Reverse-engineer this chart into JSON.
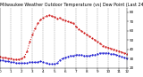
{
  "title": "Milwaukee Weather Outdoor Temperature (vs) Dew Point (Last 24 Hours)",
  "background_color": "#ffffff",
  "plot_bg_color": "#ffffff",
  "grid_color": "#888888",
  "temp_color": "#cc0000",
  "dew_color": "#0000cc",
  "x_values": [
    0,
    1,
    2,
    3,
    4,
    5,
    6,
    7,
    8,
    9,
    10,
    11,
    12,
    13,
    14,
    15,
    16,
    17,
    18,
    19,
    20,
    21,
    22,
    23,
    24,
    25,
    26,
    27,
    28,
    29,
    30,
    31,
    32,
    33,
    34,
    35,
    36,
    37,
    38,
    39,
    40,
    41,
    42,
    43,
    44,
    45,
    46,
    47
  ],
  "temp_values": [
    32,
    31,
    31,
    30,
    30,
    29,
    29,
    29,
    30,
    32,
    38,
    48,
    56,
    63,
    68,
    72,
    74,
    76,
    77,
    76,
    75,
    73,
    74,
    72,
    71,
    70,
    69,
    68,
    65,
    62,
    60,
    58,
    56,
    54,
    52,
    50,
    48,
    46,
    44,
    43,
    42,
    41,
    40,
    39,
    38,
    37,
    36,
    35
  ],
  "dew_values": [
    28,
    28,
    27,
    27,
    26,
    26,
    25,
    25,
    25,
    25,
    25,
    26,
    26,
    26,
    26,
    27,
    26,
    25,
    24,
    24,
    24,
    25,
    28,
    30,
    31,
    32,
    33,
    33,
    34,
    34,
    34,
    33,
    33,
    33,
    34,
    34,
    35,
    36,
    36,
    36,
    36,
    35,
    35,
    34,
    33,
    32,
    31,
    30
  ],
  "ylim": [
    20,
    85
  ],
  "xlim": [
    0,
    47
  ],
  "yticks": [
    20,
    30,
    40,
    50,
    60,
    70,
    80
  ],
  "ytick_labels": [
    "20",
    "30",
    "40",
    "50",
    "60",
    "70",
    "80"
  ],
  "xtick_positions": [
    0,
    4,
    8,
    12,
    16,
    20,
    24,
    28,
    32,
    36,
    40,
    44,
    47
  ],
  "vline_positions": [
    4,
    8,
    12,
    16,
    20,
    24,
    28,
    32,
    36,
    40,
    44
  ],
  "figsize": [
    1.6,
    0.87
  ],
  "dpi": 100,
  "title_fontsize": 3.5,
  "tick_fontsize": 3.0,
  "linewidth": 0.7,
  "markersize": 1.0
}
